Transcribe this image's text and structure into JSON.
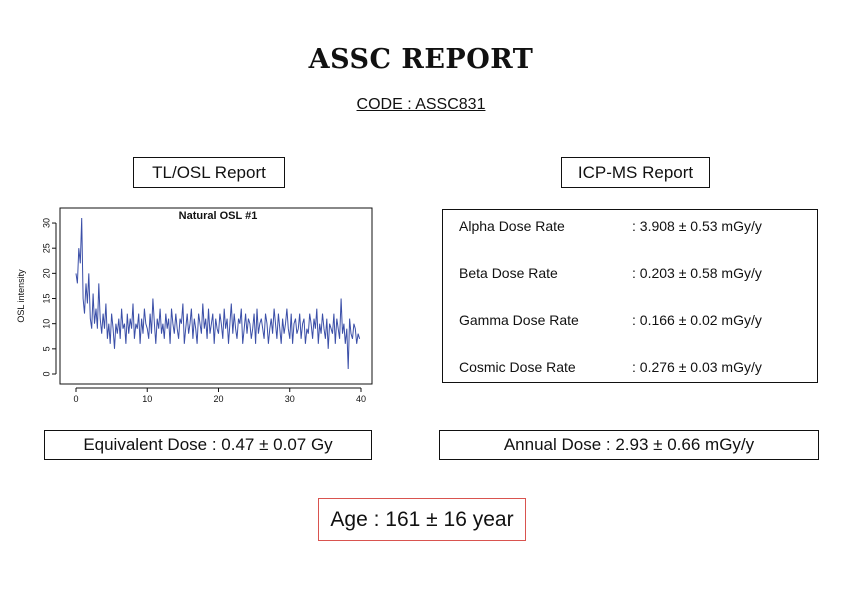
{
  "header": {
    "title": "ASSC REPORT",
    "code": "CODE : ASSC831"
  },
  "tl_osl": {
    "header": "TL/OSL Report",
    "equivalent_dose": "Equivalent Dose : 0.47 ± 0.07 Gy"
  },
  "icp_ms": {
    "header": "ICP-MS Report",
    "rows": [
      {
        "label": "Alpha Dose Rate",
        "value": ": 3.908 ± 0.53 mGy/y"
      },
      {
        "label": "Beta Dose Rate",
        "value": ": 0.203 ± 0.58 mGy/y"
      },
      {
        "label": "Gamma Dose Rate",
        "value": ": 0.166 ± 0.02 mGy/y"
      },
      {
        "label": "Cosmic Dose Rate",
        "value": ": 0.276 ± 0.03 mGy/y"
      }
    ],
    "annual_dose": "Annual Dose : 2.93 ± 0.66 mGy/y"
  },
  "age": "Age : 161 ± 16 year",
  "chart_data": {
    "type": "line",
    "title": "Natural OSL #1",
    "xlabel": "",
    "ylabel": "OSL intensity",
    "xlim": [
      0,
      40
    ],
    "ylim": [
      0,
      31
    ],
    "x_ticks": [
      0,
      10,
      20,
      30,
      40
    ],
    "y_ticks": [
      0,
      5,
      10,
      15,
      20,
      25,
      30
    ],
    "grid": false,
    "line_color": "#3b4fa8",
    "series": [
      {
        "x_start": 0,
        "x_step": 0.2,
        "values": [
          20,
          18,
          25,
          22,
          31,
          15,
          12,
          18,
          14,
          20,
          11,
          9,
          16,
          10,
          13,
          9,
          18,
          11,
          8,
          12,
          9,
          14,
          7,
          10,
          6,
          12,
          9,
          5,
          10,
          8,
          11,
          7,
          13,
          9,
          10,
          6,
          12,
          8,
          11,
          9,
          14,
          7,
          10,
          9,
          12,
          6,
          11,
          8,
          13,
          10,
          9,
          7,
          12,
          8,
          15,
          10,
          6,
          11,
          9,
          13,
          8,
          10,
          7,
          12,
          9,
          11,
          6,
          13,
          10,
          8,
          12,
          9,
          7,
          11,
          10,
          14,
          6,
          9,
          12,
          8,
          10,
          13,
          7,
          11,
          9,
          6,
          12,
          10,
          8,
          14,
          9,
          11,
          7,
          13,
          8,
          10,
          12,
          6,
          11,
          9,
          8,
          12,
          10,
          7,
          13,
          9,
          11,
          6,
          10,
          14,
          8,
          12,
          9,
          7,
          11,
          10,
          13,
          6,
          9,
          12,
          8,
          11,
          10,
          7,
          9,
          12,
          6,
          13,
          8,
          10,
          11,
          9,
          7,
          12,
          10,
          6,
          9,
          11,
          8,
          13,
          10,
          7,
          12,
          9,
          6,
          11,
          8,
          10,
          13,
          9,
          7,
          12,
          6,
          10,
          11,
          8,
          9,
          12,
          7,
          10,
          11,
          6,
          9,
          8,
          12,
          10,
          7,
          11,
          9,
          13,
          6,
          10,
          8,
          12,
          9,
          7,
          11,
          5,
          10,
          9,
          8,
          12,
          6,
          11,
          9,
          7,
          15,
          8,
          10,
          6,
          9,
          1,
          11,
          8,
          7,
          10,
          9,
          6,
          8,
          7
        ]
      }
    ]
  }
}
